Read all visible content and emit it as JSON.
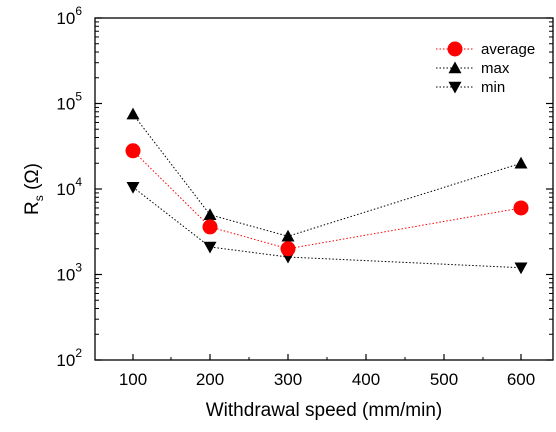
{
  "chart_data": {
    "type": "line",
    "title": "",
    "xlabel": "Withdrawal speed (mm/min)",
    "ylabel": {
      "base": "R",
      "sub": "s",
      "unit": " (Ω)"
    },
    "x_scale": "categorical",
    "x_tick_labels": [
      "100",
      "200",
      "300",
      "400",
      "500",
      "600"
    ],
    "x": [
      100,
      200,
      300,
      600
    ],
    "y_scale": "log",
    "ylim": [
      100,
      1000000
    ],
    "y_ticks": [
      {
        "base": "10",
        "exp": "2",
        "value": 100
      },
      {
        "base": "10",
        "exp": "3",
        "value": 1000
      },
      {
        "base": "10",
        "exp": "4",
        "value": 10000
      },
      {
        "base": "10",
        "exp": "5",
        "value": 100000
      },
      {
        "base": "10",
        "exp": "6",
        "value": 1000000
      }
    ],
    "grid": false,
    "legend_position": "top-right",
    "series": [
      {
        "name": "average",
        "values": [
          28000,
          3600,
          2000,
          6000
        ],
        "color": "#ff0000",
        "marker": "circle"
      },
      {
        "name": "max",
        "values": [
          75000,
          5000,
          2800,
          20000
        ],
        "color": "#000000",
        "marker": "triangle-up"
      },
      {
        "name": "min",
        "values": [
          10500,
          2100,
          1600,
          1200
        ],
        "color": "#000000",
        "marker": "triangle-down"
      }
    ]
  }
}
